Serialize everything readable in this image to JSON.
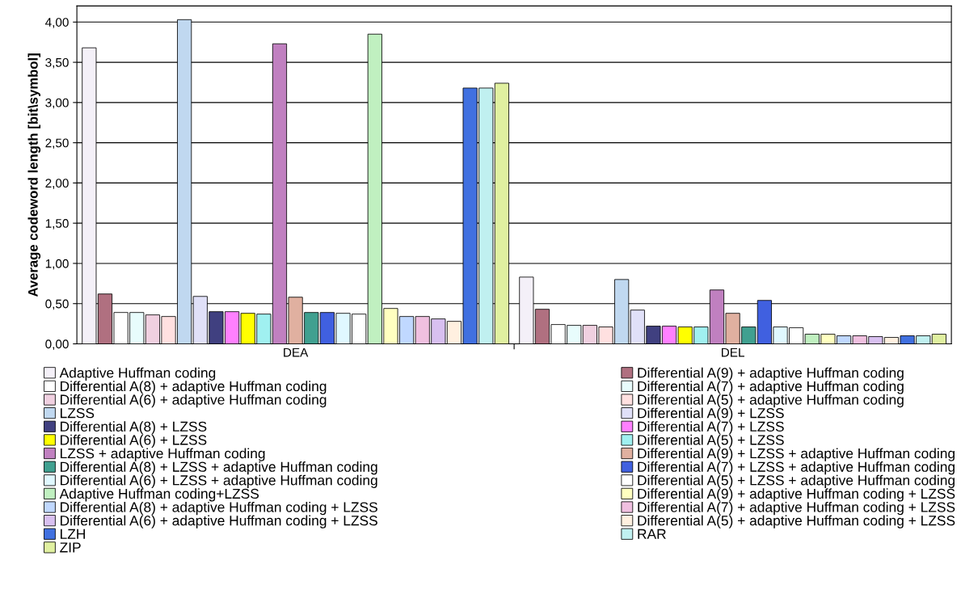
{
  "chart_data": {
    "type": "bar",
    "ylabel": "Average codeword length [bit\\symbol]",
    "categories": [
      "DEA",
      "DEL"
    ],
    "ylim": [
      0,
      4.2
    ],
    "yticks": [
      {
        "value": 0,
        "label": "0,00"
      },
      {
        "value": 0.5,
        "label": "0,50"
      },
      {
        "value": 1,
        "label": "1,00"
      },
      {
        "value": 1.5,
        "label": "1,50"
      },
      {
        "value": 2,
        "label": "2,00"
      },
      {
        "value": 2.5,
        "label": "2,50"
      },
      {
        "value": 3,
        "label": "3,00"
      },
      {
        "value": 3.5,
        "label": "3,50"
      },
      {
        "value": 4,
        "label": "4,00"
      }
    ],
    "grid": "y",
    "legend": "bottom",
    "series": [
      {
        "name": "Adaptive Huffman coding",
        "color": "#f4f0f8",
        "values": [
          3.68,
          0.83
        ]
      },
      {
        "name": "Differential A(9) + adaptive Huffman coding",
        "color": "#b07080",
        "values": [
          0.62,
          0.43
        ]
      },
      {
        "name": "Differential A(8) + adaptive Huffman coding",
        "color": "#ffffff",
        "values": [
          0.39,
          0.24
        ]
      },
      {
        "name": "Differential A(7) + adaptive Huffman coding",
        "color": "#e8fcfc",
        "values": [
          0.39,
          0.23
        ]
      },
      {
        "name": "Differential A(6) + adaptive Huffman coding",
        "color": "#f0d0e0",
        "values": [
          0.36,
          0.23
        ]
      },
      {
        "name": "Differential A(5) + adaptive Huffman coding",
        "color": "#ffe0e0",
        "values": [
          0.34,
          0.21
        ]
      },
      {
        "name": "LZSS",
        "color": "#c0d8f0",
        "values": [
          4.03,
          0.8
        ]
      },
      {
        "name": "Differential A(9) + LZSS",
        "color": "#e0e0f8",
        "values": [
          0.59,
          0.42
        ]
      },
      {
        "name": "Differential A(8) + LZSS",
        "color": "#404080",
        "values": [
          0.4,
          0.22
        ]
      },
      {
        "name": "Differential A(7) + LZSS",
        "color": "#ff80ff",
        "values": [
          0.4,
          0.22
        ]
      },
      {
        "name": "Differential A(6) + LZSS",
        "color": "#ffff00",
        "values": [
          0.38,
          0.21
        ]
      },
      {
        "name": "Differential A(5) + LZSS",
        "color": "#a0f0f0",
        "values": [
          0.37,
          0.21
        ]
      },
      {
        "name": "LZSS + adaptive Huffman coding",
        "color": "#c080c0",
        "values": [
          3.73,
          0.67
        ]
      },
      {
        "name": "Differential A(9) + LZSS + adaptive Huffman coding",
        "color": "#e0b0a0",
        "values": [
          0.58,
          0.38
        ]
      },
      {
        "name": "Differential A(8) + LZSS + adaptive Huffman coding",
        "color": "#40a090",
        "values": [
          0.39,
          0.21
        ]
      },
      {
        "name": "Differential A(7) + LZSS + adaptive Huffman coding",
        "color": "#4060e0",
        "values": [
          0.39,
          0.54
        ]
      },
      {
        "name": "Differential A(6) + LZSS + adaptive Huffman coding",
        "color": "#e0f8ff",
        "values": [
          0.38,
          0.21
        ]
      },
      {
        "name": "Differential A(5) + LZSS + adaptive Huffman coding",
        "color": "#ffffff",
        "values": [
          0.37,
          0.2
        ]
      },
      {
        "name": "Adaptive Huffman coding+LZSS",
        "color": "#c0f0c0",
        "values": [
          3.85,
          0.12
        ]
      },
      {
        "name": "Differential A(9) + adaptive Huffman coding + LZSS",
        "color": "#ffffc0",
        "values": [
          0.44,
          0.12
        ]
      },
      {
        "name": "Differential A(8) + adaptive Huffman coding + LZSS",
        "color": "#c0d8ff",
        "values": [
          0.34,
          0.1
        ]
      },
      {
        "name": "Differential A(7) + adaptive Huffman coding + LZSS",
        "color": "#f0c0e0",
        "values": [
          0.34,
          0.1
        ]
      },
      {
        "name": "Differential A(6) + adaptive Huffman coding + LZSS",
        "color": "#d8c0f0",
        "values": [
          0.31,
          0.09
        ]
      },
      {
        "name": "Differential A(5) + adaptive Huffman coding + LZSS",
        "color": "#fff0e0",
        "values": [
          0.28,
          0.08
        ]
      },
      {
        "name": "LZH",
        "color": "#4070e0",
        "values": [
          3.18,
          0.1
        ]
      },
      {
        "name": "RAR",
        "color": "#c0f0f0",
        "values": [
          3.18,
          0.1
        ]
      },
      {
        "name": "ZIP",
        "color": "#e0f0a0",
        "values": [
          3.24,
          0.12
        ]
      }
    ]
  }
}
